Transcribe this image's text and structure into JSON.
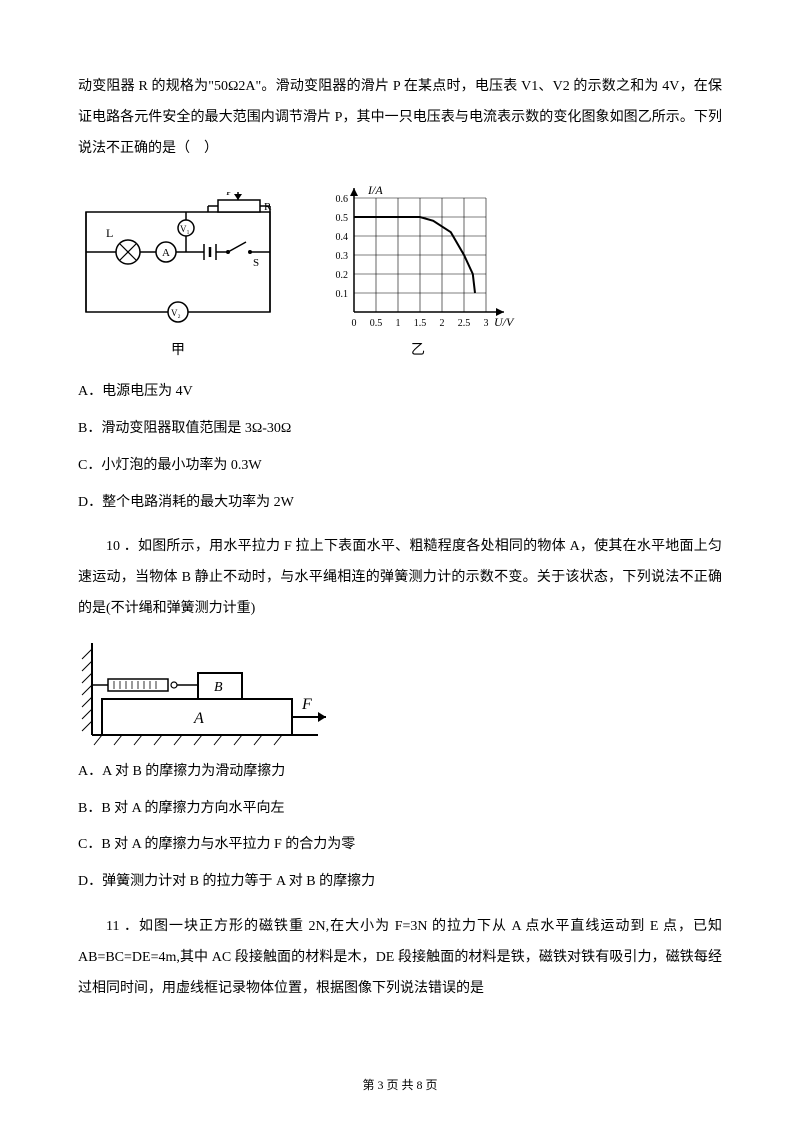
{
  "q9": {
    "intro": "动变阻器 R 的规格为\"50Ω2A\"。滑动变阻器的滑片 P 在某点时，电压表 V1、V2 的示数之和为 4V，在保证电路各元件安全的最大范围内调节滑片 P，其中一只电压表与电流表示数的变化图象如图乙所示。下列说法不正确的是（　）",
    "circuit_labels": {
      "P": "P",
      "R": "R",
      "L": "L",
      "V1": "V₁",
      "V2": "V₂",
      "A": "A",
      "S": "S"
    },
    "graph": {
      "y_label": "I/A",
      "x_label": "U/V",
      "y_ticks": [
        "0.1",
        "0.2",
        "0.3",
        "0.4",
        "0.5",
        "0.6"
      ],
      "x_ticks": [
        "0",
        "0.5",
        "1",
        "1.5",
        "2",
        "2.5",
        "3"
      ],
      "y_max": 0.6,
      "x_max": 3,
      "curve": [
        [
          0,
          0.5
        ],
        [
          0.5,
          0.5
        ],
        [
          1,
          0.5
        ],
        [
          1.5,
          0.5
        ],
        [
          1.8,
          0.48
        ],
        [
          2.2,
          0.42
        ],
        [
          2.5,
          0.3
        ],
        [
          2.7,
          0.2
        ],
        [
          2.75,
          0.1
        ]
      ],
      "grid_color": "#000",
      "line_color": "#000",
      "axis_color": "#000"
    },
    "fig_labels": {
      "left": "甲",
      "right": "乙"
    },
    "options": {
      "A": "A．电源电压为 4V",
      "B": "B．滑动变阻器取值范围是 3Ω-30Ω",
      "C": "C．小灯泡的最小功率为 0.3W",
      "D": "D．整个电路消耗的最大功率为 2W"
    }
  },
  "q10": {
    "lead": "10 ．如图所示，用水平拉力 F 拉上下表面水平、粗糙程度各处相同的物体 A，使其在水平地面上匀速运动，当物体 B 静止不动时，与水平绳相连的弹簧测力计的示数不变。关于该状态，下列说法不正确的是(不计绳和弹簧测力计重)",
    "labels": {
      "A": "A",
      "B": "B",
      "F": "F"
    },
    "options": {
      "A": "A．A 对 B 的摩擦力为滑动摩擦力",
      "B": "B．B 对 A 的摩擦力方向水平向左",
      "C": "C．B 对 A 的摩擦力与水平拉力 F 的合力为零",
      "D": "D．弹簧测力计对 B 的拉力等于 A 对 B 的摩擦力"
    }
  },
  "q11": {
    "lead": "11  ．如图一块正方形的磁铁重 2N,在大小为 F=3N 的拉力下从 A 点水平直线运动到 E 点，已知 AB=BC=DE=4m,其中 AC 段接触面的材料是木，DE 段接触面的材料是铁，磁铁对铁有吸引力，磁铁每经过相同时间，用虚线框记录物体位置，根据图像下列说法错误的是"
  },
  "footer": "第 3 页 共 8 页"
}
